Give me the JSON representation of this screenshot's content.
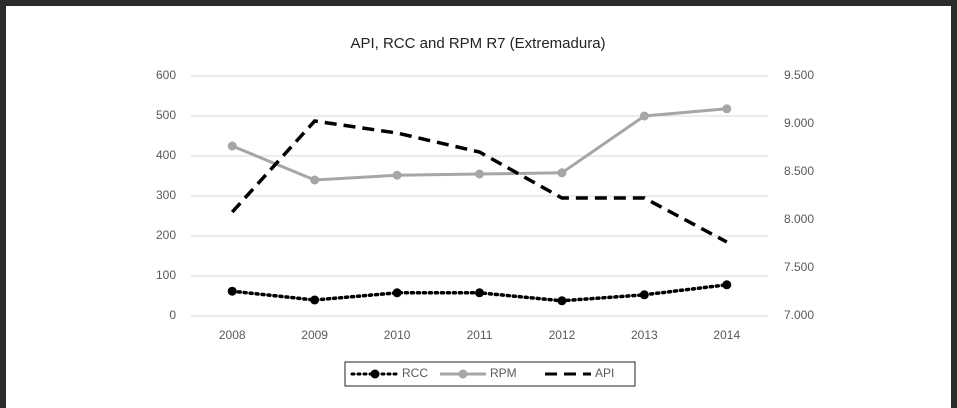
{
  "chart_data": {
    "type": "line",
    "title": "API, RCC and RPM R7 (Extremadura)",
    "categories": [
      "2008",
      "2009",
      "2010",
      "2011",
      "2012",
      "2013",
      "2014"
    ],
    "ylim": [
      0,
      600
    ],
    "yticks": [
      0,
      100,
      200,
      300,
      400,
      500,
      600
    ],
    "y2lim": [
      7000,
      9500
    ],
    "y2ticks": [
      {
        "value": 7000,
        "label": "7.000"
      },
      {
        "value": 7500,
        "label": "7.500"
      },
      {
        "value": 8000,
        "label": "8.000"
      },
      {
        "value": 8500,
        "label": "8.500"
      },
      {
        "value": 9000,
        "label": "9.000"
      },
      {
        "value": 9500,
        "label": "9.500"
      }
    ],
    "grid": true,
    "legend": "bottom",
    "series": [
      {
        "name": "RCC",
        "color": "#000000",
        "line_style": "dotted",
        "marker": true,
        "values": [
          62,
          40,
          58,
          58,
          38,
          53,
          78
        ]
      },
      {
        "name": "RPM",
        "color": "#a6a6a6",
        "line_style": "solid",
        "marker": true,
        "values": [
          425,
          340,
          352,
          355,
          358,
          500,
          518
        ]
      },
      {
        "name": "API",
        "color": "#000000",
        "line_style": "dashed",
        "marker": false,
        "axis": "y2",
        "values": [
          8083,
          9031,
          8906,
          8708,
          8229,
          8229,
          7771
        ]
      }
    ]
  }
}
